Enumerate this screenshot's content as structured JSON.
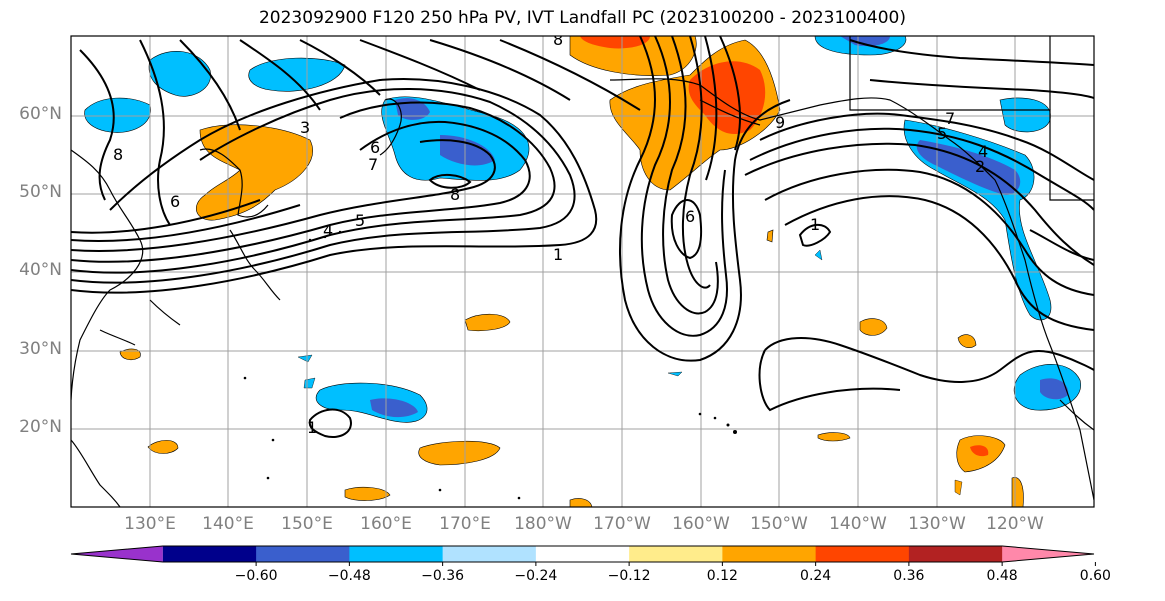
{
  "title": "2023092900 F120 250 hPa PV, IVT Landfall PC (2023100200 - 2023100400)",
  "lat_labels": [
    "60°N",
    "50°N",
    "40°N",
    "30°N",
    "20°N"
  ],
  "lon_labels": [
    "130°E",
    "140°E",
    "150°E",
    "160°E",
    "170°E",
    "180°W",
    "170°W",
    "160°W",
    "150°W",
    "140°W",
    "130°W",
    "120°W"
  ],
  "colorbar": {
    "colors": [
      "#9932cc",
      "#00008b",
      "#3a5fcd",
      "#00bfff",
      "#b0e2ff",
      "#ffffff",
      "#ffec8b",
      "#ffa500",
      "#ff4500",
      "#b22222",
      "#ff88aa"
    ],
    "tick_labels": [
      "−0.60",
      "−0.48",
      "−0.36",
      "−0.24",
      "−0.12",
      "0.12",
      "0.24",
      "0.36",
      "0.48",
      "0.60"
    ]
  },
  "contour_labels": [
    "8",
    "3",
    "6",
    "7",
    "5",
    "4",
    "8",
    "6",
    "1",
    "6",
    "5",
    "4",
    "2",
    "7",
    "8",
    "9",
    "1",
    "1"
  ]
}
